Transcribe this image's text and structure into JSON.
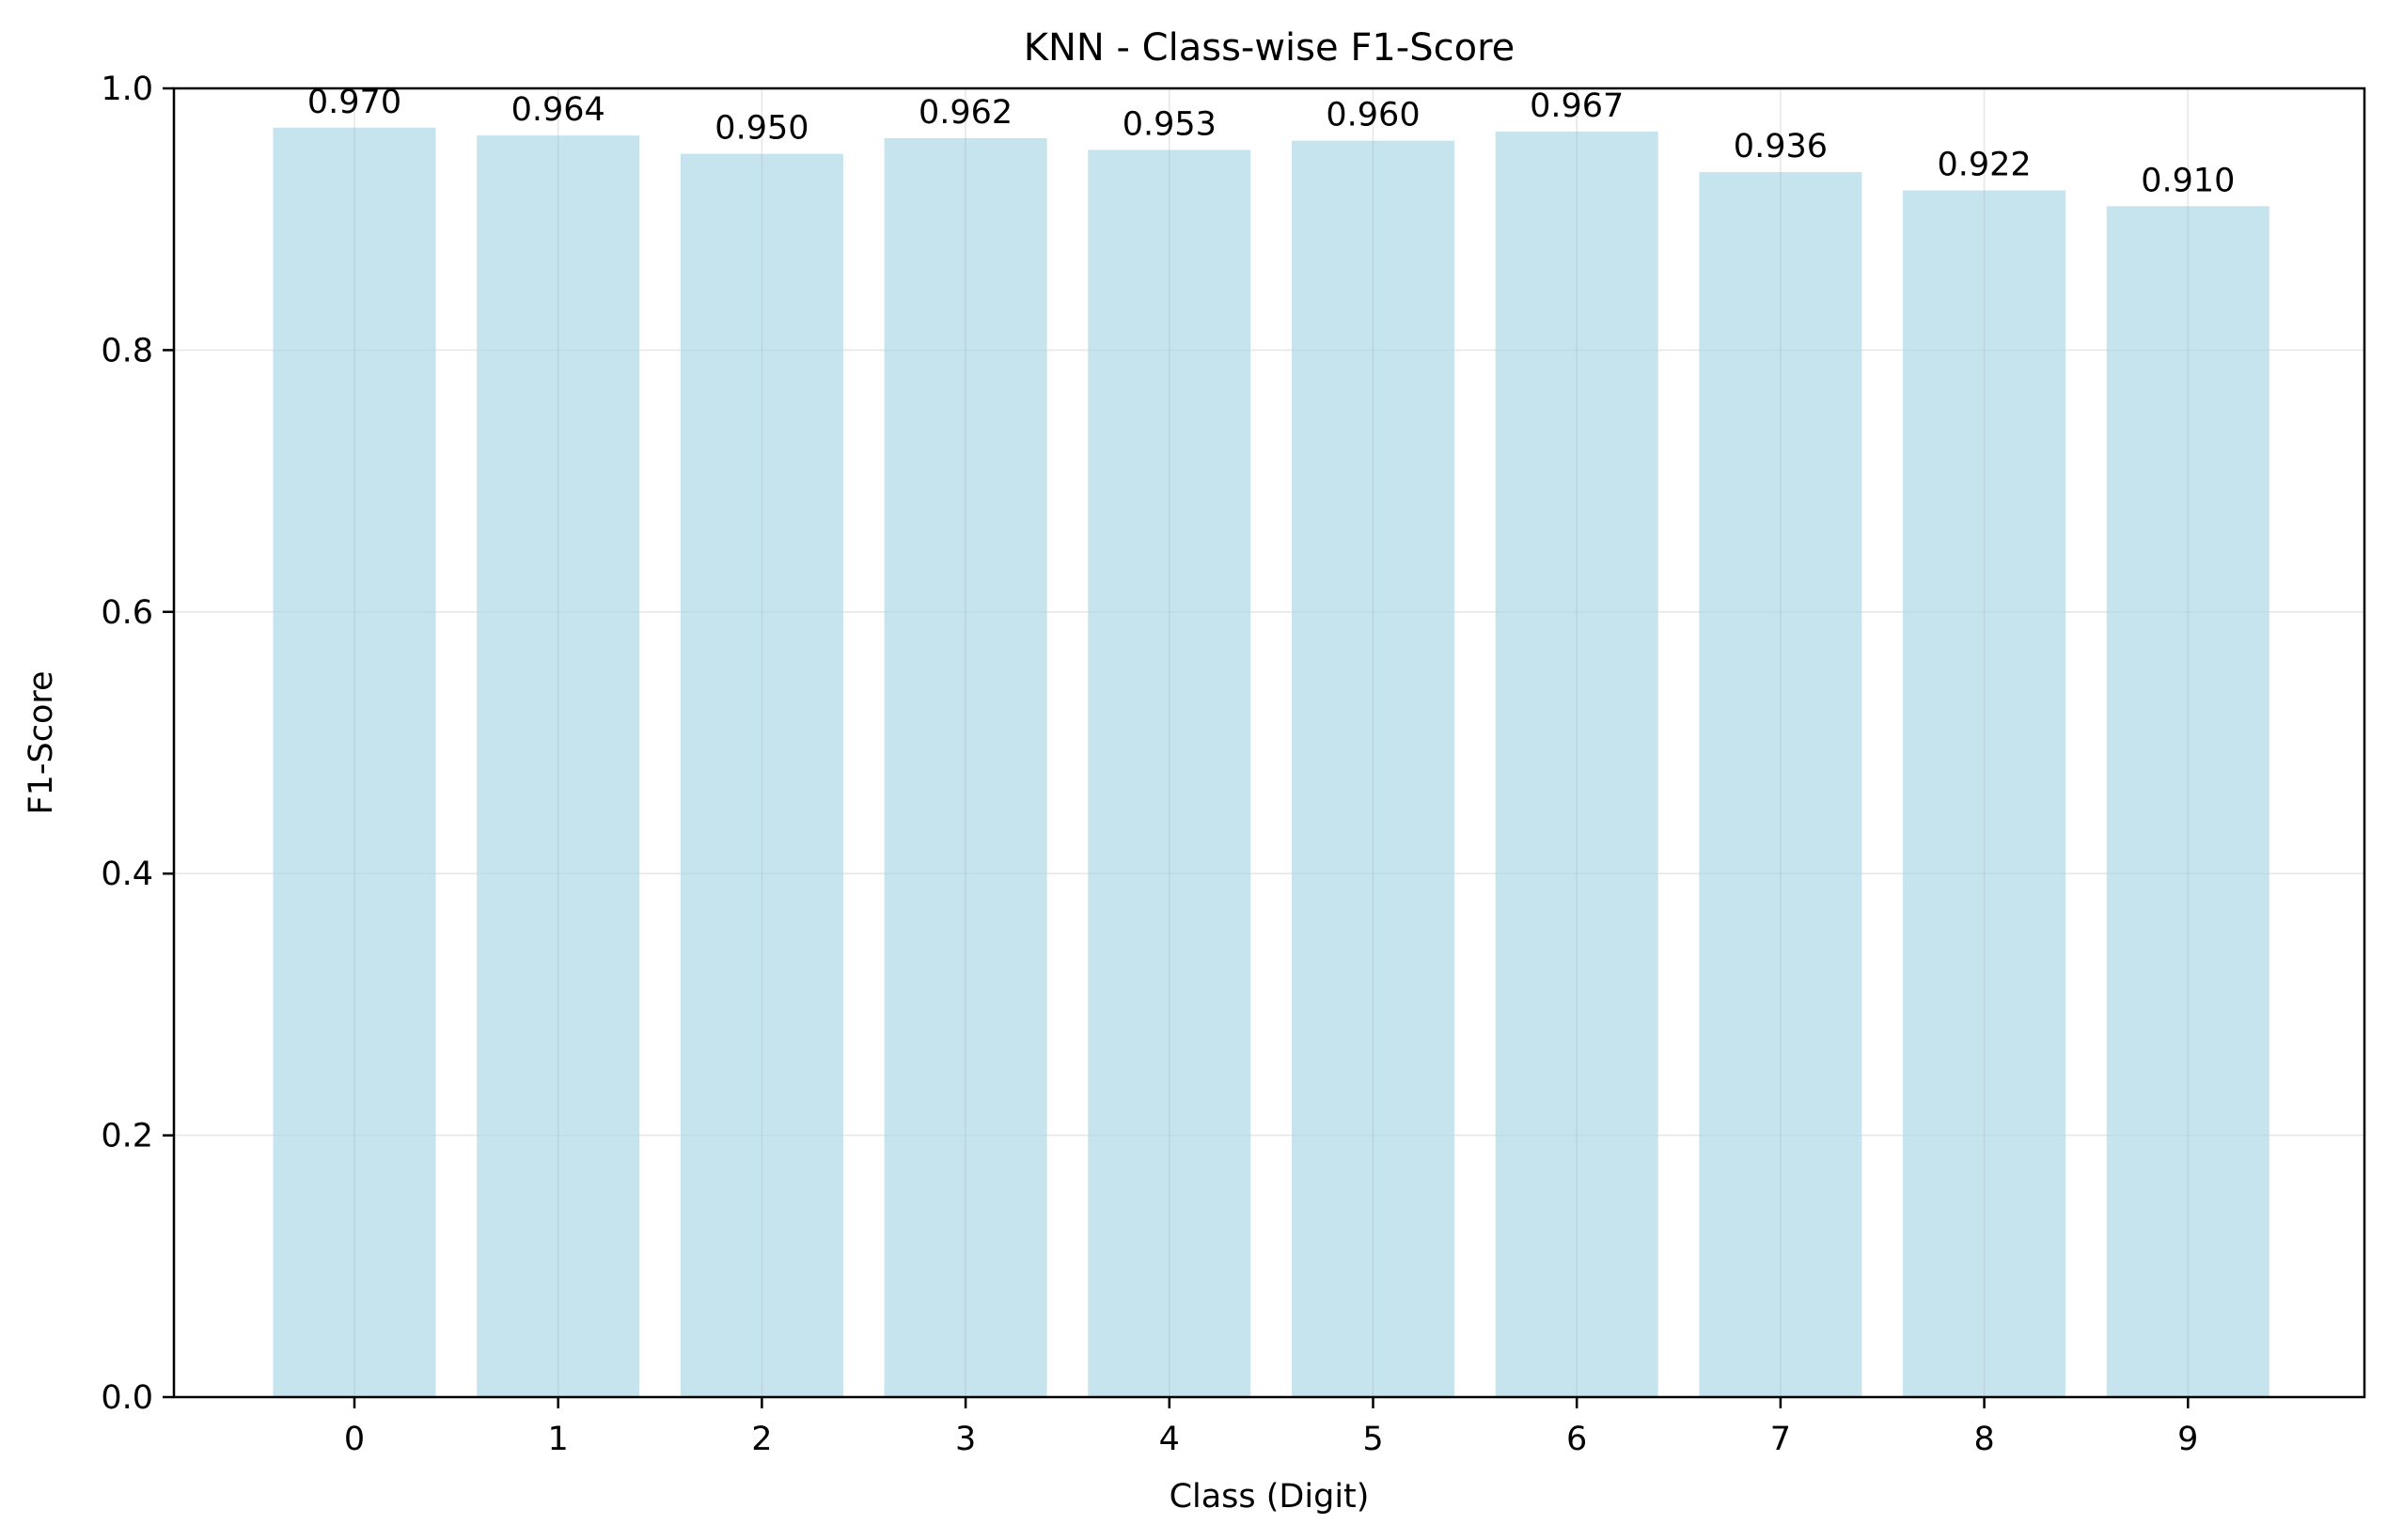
{
  "chart_data": {
    "type": "bar",
    "title": "KNN - Class-wise F1-Score",
    "xlabel": "Class (Digit)",
    "ylabel": "F1-Score",
    "categories": [
      "0",
      "1",
      "2",
      "3",
      "4",
      "5",
      "6",
      "7",
      "8",
      "9"
    ],
    "values": [
      0.97,
      0.964,
      0.95,
      0.962,
      0.953,
      0.96,
      0.967,
      0.936,
      0.922,
      0.91
    ],
    "value_labels": [
      "0.970",
      "0.964",
      "0.950",
      "0.962",
      "0.953",
      "0.960",
      "0.967",
      "0.936",
      "0.922",
      "0.910"
    ],
    "ylim": [
      0.0,
      1.0
    ],
    "yticks": [
      "0.0",
      "0.2",
      "0.4",
      "0.6",
      "0.8",
      "1.0"
    ],
    "ytick_values": [
      0.0,
      0.2,
      0.4,
      0.6,
      0.8,
      1.0
    ],
    "grid": true,
    "bar_color": "#add8e6",
    "legend": "none"
  }
}
